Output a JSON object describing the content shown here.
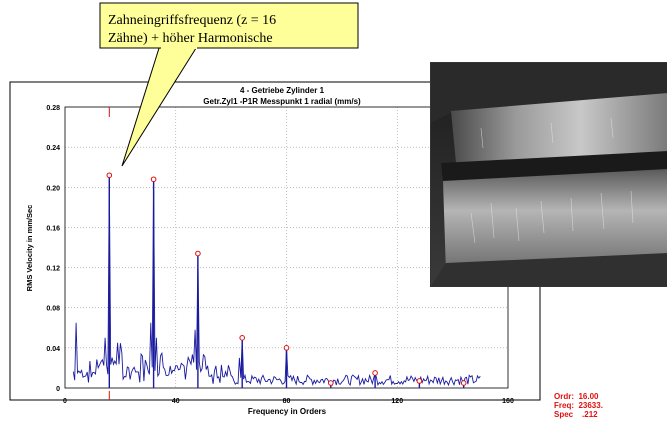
{
  "callout": {
    "line1": "Zahneingriffsfrequenz (z = 16",
    "line2": "Zähne) + höher Harmonische"
  },
  "readout": {
    "ordr_label": "Ordr:",
    "ordr_value": "16.00",
    "freq_label": "Freq:",
    "freq_value": "23633.",
    "spec_label": "Spec",
    "spec_value": ".212"
  },
  "colors": {
    "trace": "#1a1aa0",
    "marker": "#e01010",
    "callout_fill": "#ffff99",
    "grid": "#9a9a9a"
  },
  "photo": {
    "icon": "gear-tooth-wear-photo"
  },
  "chart_data": {
    "type": "line",
    "title": "4     - Getriebe Zylinder 1",
    "subtitle": "Getr.Zyl1 -P1R   Messpunkt 1 radial (mm/s)",
    "xlabel": "Frequency in Orders",
    "ylabel": "RMS Velocity in mm/Sec",
    "xlim": [
      0,
      160
    ],
    "ylim": [
      0,
      0.28
    ],
    "x_ticks": [
      0,
      40,
      80,
      120,
      160
    ],
    "x_tick_labels": [
      "0",
      "40",
      "80",
      "120",
      "160"
    ],
    "y_ticks": [
      0,
      0.04,
      0.08,
      0.12,
      0.16,
      0.2,
      0.24,
      0.28
    ],
    "y_tick_labels": [
      "0",
      "0.04",
      "0.08",
      "0.12",
      "0.16",
      "0.20",
      "0.24",
      "0.28"
    ],
    "grid": true,
    "cursor_x": 16,
    "peaks": [
      {
        "x": 16,
        "y": 0.212
      },
      {
        "x": 32,
        "y": 0.208
      },
      {
        "x": 48,
        "y": 0.134
      },
      {
        "x": 64,
        "y": 0.05
      },
      {
        "x": 80,
        "y": 0.04
      },
      {
        "x": 96,
        "y": 0.005
      },
      {
        "x": 112,
        "y": 0.015
      },
      {
        "x": 128,
        "y": 0.007
      },
      {
        "x": 144,
        "y": 0.005
      }
    ],
    "extra_lines": [
      {
        "x": 4,
        "y": 0.065
      },
      {
        "x": 14.5,
        "y": 0.05
      },
      {
        "x": 19,
        "y": 0.045
      },
      {
        "x": 31,
        "y": 0.065
      },
      {
        "x": 33,
        "y": 0.05
      },
      {
        "x": 47,
        "y": 0.058
      },
      {
        "x": 63,
        "y": 0.03
      }
    ]
  }
}
